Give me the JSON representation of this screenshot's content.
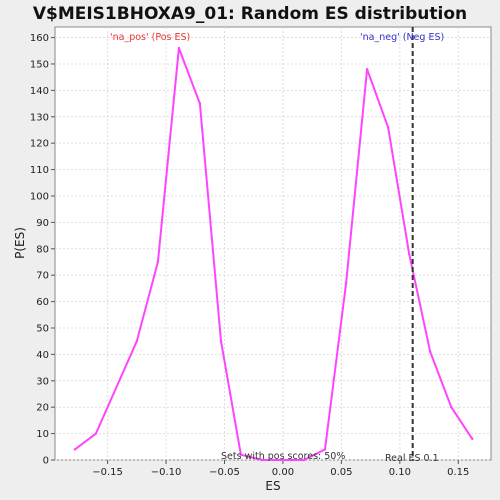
{
  "chart_data": {
    "type": "line",
    "title": "V$MEIS1BHOXA9_01: Random ES distribution",
    "xlabel": "ES",
    "ylabel": "P(ES)",
    "xlim": [
      -0.195,
      0.178
    ],
    "ylim": [
      0,
      164
    ],
    "x_ticks": [
      -0.15,
      -0.1,
      -0.05,
      0.0,
      0.05,
      0.1,
      0.15
    ],
    "x_tick_labels": [
      "−0.15",
      "−0.10",
      "−0.05",
      "0.00",
      "0.05",
      "0.10",
      "0.15"
    ],
    "y_ticks": [
      0,
      10,
      20,
      30,
      40,
      50,
      60,
      70,
      80,
      90,
      100,
      110,
      120,
      130,
      140,
      150,
      160
    ],
    "grid": true,
    "series": [
      {
        "color": "#ff44ff",
        "x": [
          -0.178,
          -0.16,
          -0.125,
          -0.107,
          -0.089,
          -0.071,
          -0.053,
          -0.036,
          -0.018,
          0.0,
          0.018,
          0.036,
          0.054,
          0.072,
          0.09,
          0.108,
          0.126,
          0.144,
          0.162
        ],
        "y": [
          4,
          10,
          45,
          75,
          156,
          135,
          45,
          2,
          0,
          0,
          0,
          4,
          67,
          148,
          126,
          78,
          41,
          20,
          8
        ]
      }
    ],
    "real_es": 0.111,
    "annotations": {
      "pos_label": "'na_pos' (Pos ES)",
      "neg_label": "'na_neg' (Neg ES)",
      "sets_label": "Sets with pos scores: 50%",
      "real_label": "Real ES 0.1"
    },
    "colors": {
      "pos": "#ee3333",
      "neg": "#3333cc",
      "curve": "#ff44ff",
      "real_line": "#333333",
      "grid": "#dddddd"
    }
  }
}
